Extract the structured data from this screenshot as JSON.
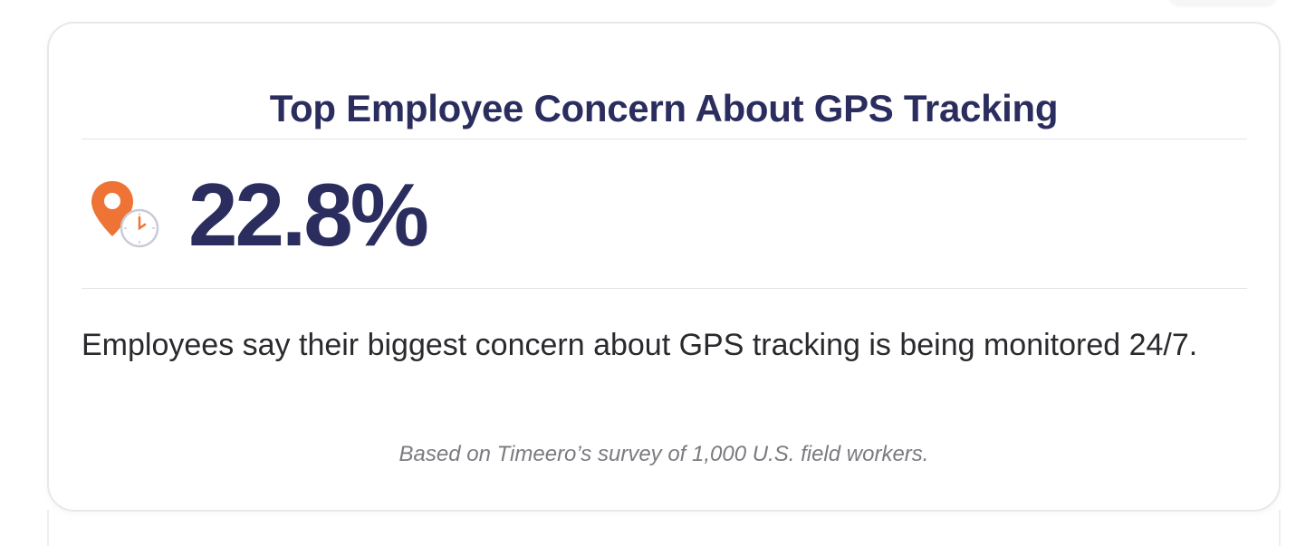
{
  "card": {
    "title": "Top Employee Concern About GPS Tracking",
    "icon": "location-pin-clock-icon",
    "stat_value": "22.8%",
    "description": "Employees say their biggest concern about GPS tracking is being monitored 24/7.",
    "footnote": "Based on Timeero’s survey of 1,000 U.S. field workers.",
    "accent_color": "#ee7334",
    "title_color": "#2b2d5e"
  }
}
